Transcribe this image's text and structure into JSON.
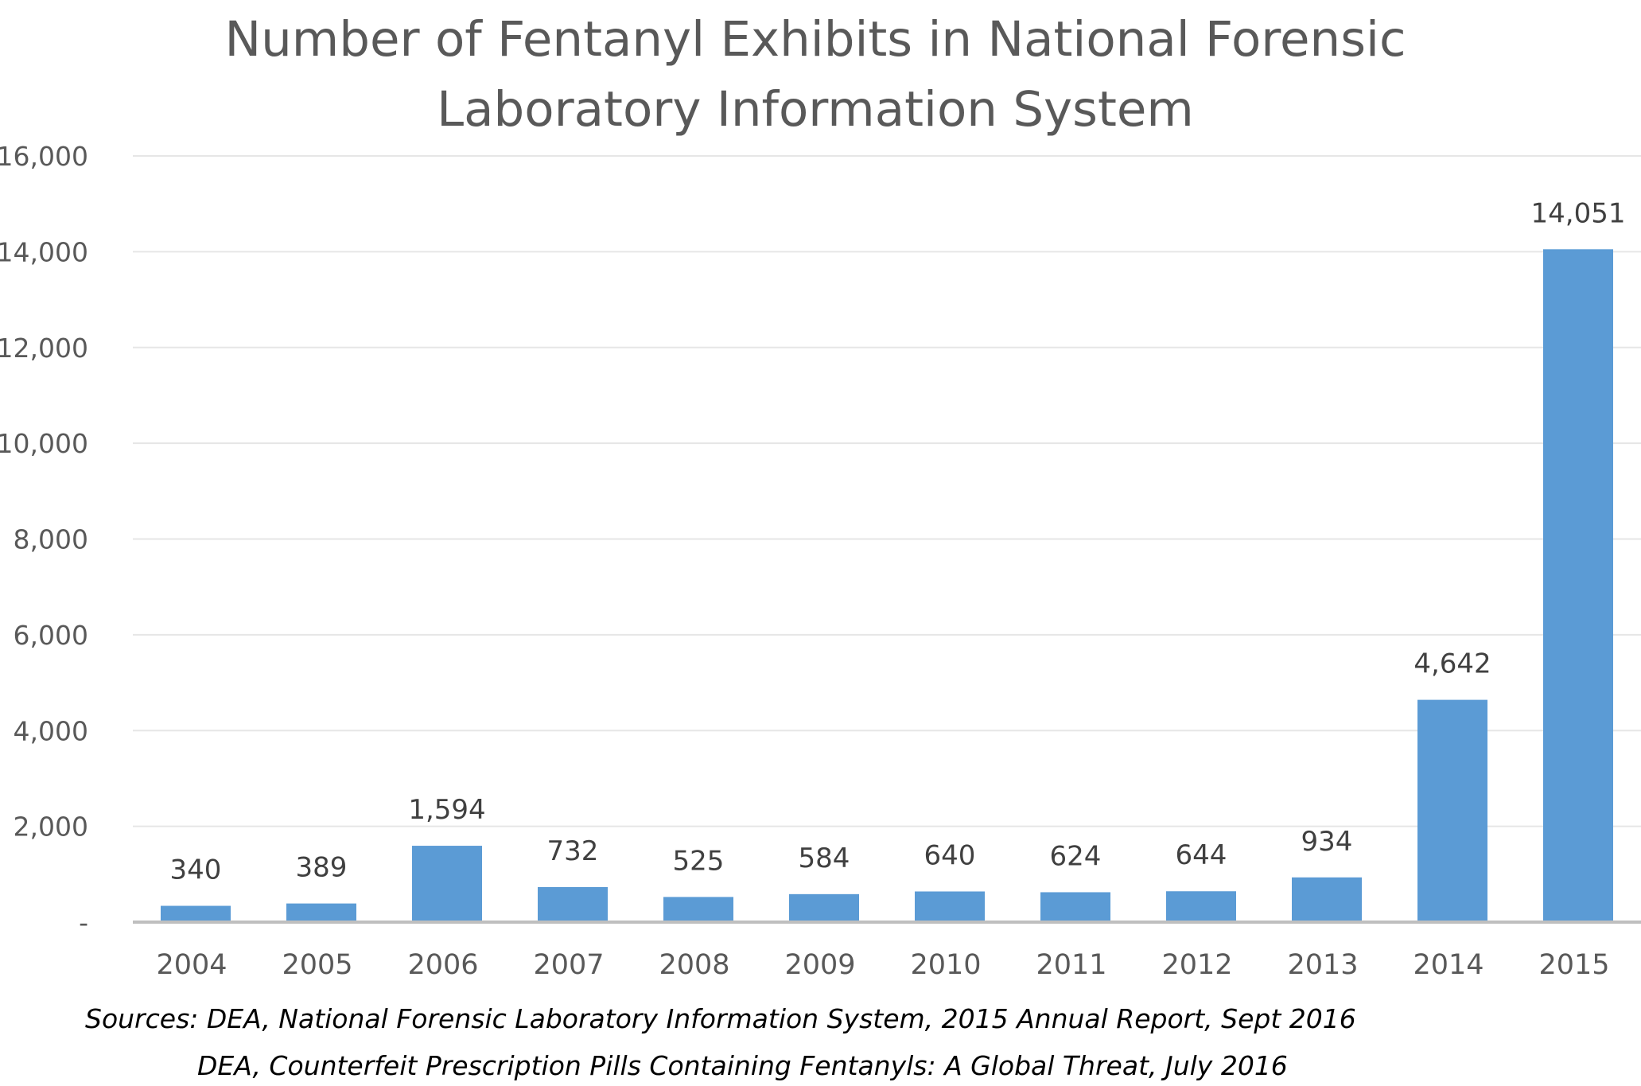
{
  "colors": {
    "bar": "#5b9bd5",
    "text": "#595959",
    "data_label": "#404040",
    "gridline": "#e6e6e6",
    "axis": "#bfbfbf",
    "background": "#ffffff"
  },
  "chart_data": {
    "type": "bar",
    "title": "Number of Fentanyl Exhibits in National Forensic Laboratory Information System",
    "title_lines": [
      "Number of Fentanyl Exhibits in National Forensic",
      "Laboratory Information System"
    ],
    "xlabel": "",
    "ylabel": "",
    "categories": [
      "2004",
      "2005",
      "2006",
      "2007",
      "2008",
      "2009",
      "2010",
      "2011",
      "2012",
      "2013",
      "2014",
      "2015"
    ],
    "values": [
      340,
      389,
      1594,
      732,
      525,
      584,
      640,
      624,
      644,
      934,
      4642,
      14051
    ],
    "data_labels": [
      "340",
      "389",
      "1,594",
      "732",
      "525",
      "584",
      "640",
      "624",
      "644",
      "934",
      "4,642",
      "14,051"
    ],
    "ylim": [
      0,
      16000
    ],
    "yticks": [
      0,
      2000,
      4000,
      6000,
      8000,
      10000,
      12000,
      14000,
      16000
    ],
    "ytick_labels": [
      "-",
      "2,000",
      "4,000",
      "6,000",
      "8,000",
      "10,000",
      "12,000",
      "14,000",
      "16,000"
    ],
    "grid": true,
    "legend": "none"
  },
  "sources": [
    "Sources: DEA, National Forensic Laboratory Information System, 2015 Annual Report, Sept 2016",
    "DEA, Counterfeit Prescription Pills Containing Fentanyls: A Global Threat, July 2016"
  ]
}
